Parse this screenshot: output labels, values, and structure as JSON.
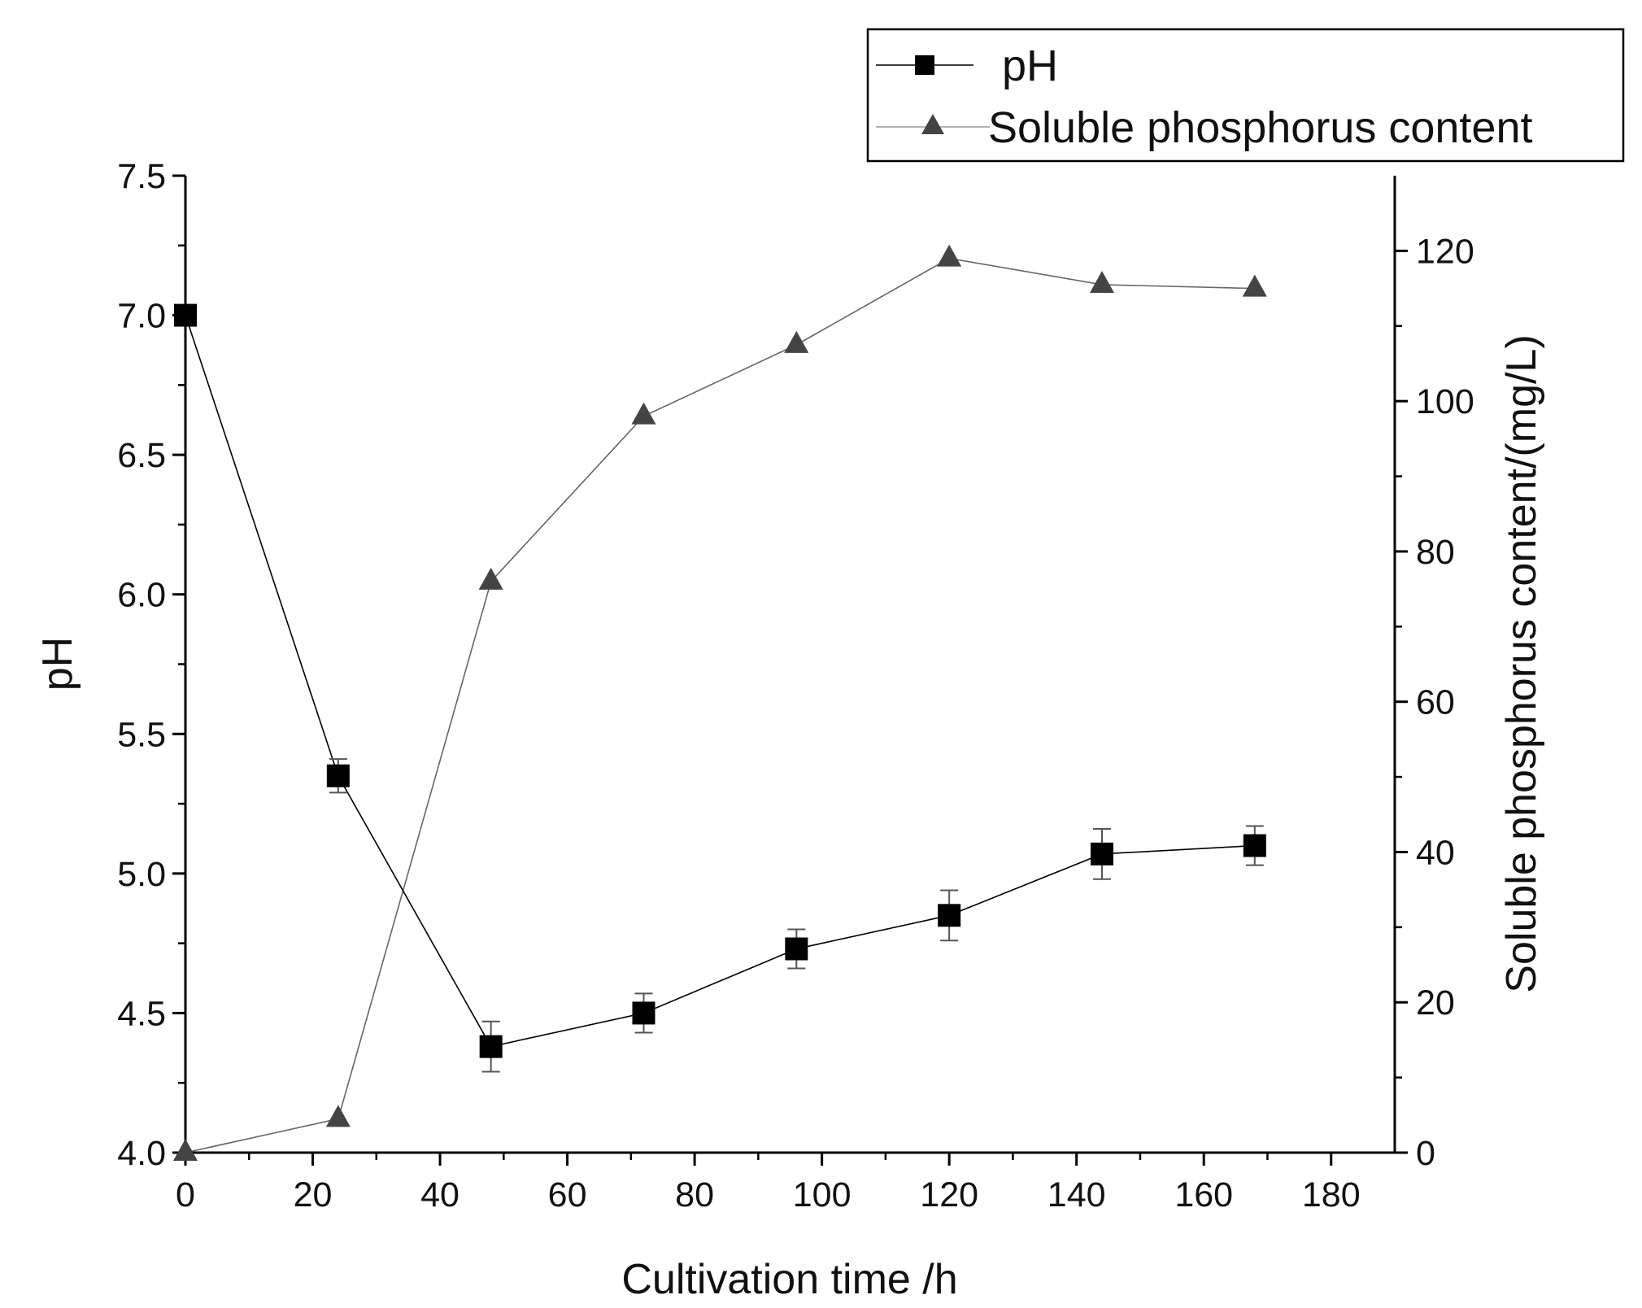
{
  "chart_data": {
    "type": "line",
    "xlabel": "Cultivation time /h",
    "ylabel_left": "pH",
    "ylabel_right": "Soluble phosphorus content/(mg/L)",
    "xlim": [
      0,
      190
    ],
    "ylim_left": [
      4.0,
      7.5
    ],
    "ylim_right": [
      0,
      130
    ],
    "x_ticks": [
      0,
      20,
      40,
      60,
      80,
      100,
      120,
      140,
      160,
      180
    ],
    "y_left_ticks": [
      4.0,
      4.5,
      5.0,
      5.5,
      6.0,
      6.5,
      7.0,
      7.5
    ],
    "y_left_tick_labels": [
      "4.0",
      "4.5",
      "5.0",
      "5.5",
      "6.0",
      "6.5",
      "7.0",
      "7.5"
    ],
    "y_right_ticks": [
      0,
      20,
      40,
      60,
      80,
      100,
      120
    ],
    "grid": false,
    "legend_position": "top-right",
    "series": [
      {
        "name": "pH",
        "axis": "left",
        "marker": "square",
        "color": "#000000",
        "x": [
          0,
          24,
          48,
          72,
          96,
          120,
          144,
          168
        ],
        "y": [
          7.0,
          5.35,
          4.38,
          4.5,
          4.73,
          4.85,
          5.07,
          5.1
        ],
        "error": [
          0.0,
          0.06,
          0.09,
          0.07,
          0.07,
          0.09,
          0.09,
          0.07
        ]
      },
      {
        "name": "Soluble phosphorus content",
        "axis": "right",
        "marker": "triangle",
        "color": "#444444",
        "x": [
          0,
          24,
          48,
          72,
          96,
          120,
          144,
          168
        ],
        "y": [
          0,
          4.5,
          76,
          98,
          107.5,
          119,
          115.5,
          115
        ]
      }
    ]
  }
}
